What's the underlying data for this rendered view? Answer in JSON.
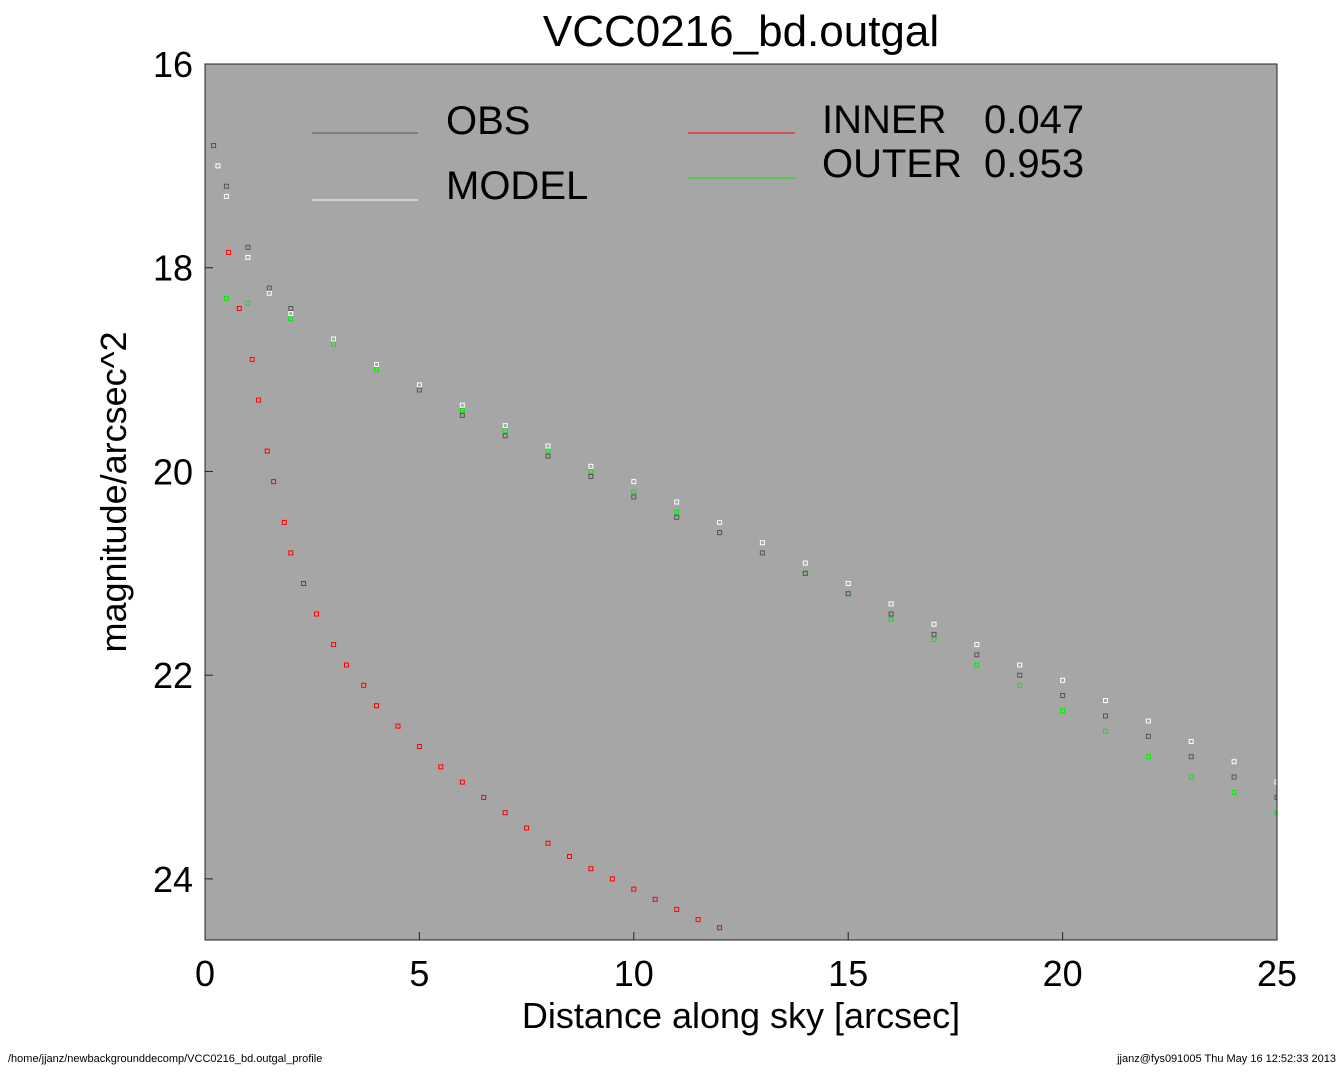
{
  "chart_data": {
    "type": "scatter",
    "title": "VCC0216_bd.outgal",
    "xlabel": "Distance along sky [arcsec]",
    "ylabel": "magnitude/arcsec^2",
    "xlim": [
      0,
      25
    ],
    "ylim": [
      16,
      24.6
    ],
    "y_inverted": true,
    "xticks": [
      0,
      5,
      10,
      15,
      20,
      25
    ],
    "yticks": [
      16,
      18,
      20,
      22,
      24
    ],
    "background_color": "#a6a6a6",
    "grid": false,
    "legend": [
      {
        "name": "OBS",
        "value": "",
        "color": "#555555"
      },
      {
        "name": "MODEL",
        "value": "",
        "color": "#ffffff"
      },
      {
        "name": "INNER",
        "value": "0.047",
        "color": "#ff0000"
      },
      {
        "name": "OUTER",
        "value": "0.953",
        "color": "#00ee00"
      }
    ],
    "series": [
      {
        "name": "INNER",
        "color": "#ff0000",
        "points": [
          [
            0.55,
            17.85
          ],
          [
            0.8,
            18.4
          ],
          [
            1.1,
            18.9
          ],
          [
            1.25,
            19.3
          ],
          [
            1.45,
            19.8
          ],
          [
            1.6,
            20.1
          ],
          [
            1.85,
            20.5
          ],
          [
            2.0,
            20.8
          ],
          [
            2.3,
            21.1
          ],
          [
            2.6,
            21.4
          ],
          [
            3.0,
            21.7
          ],
          [
            3.3,
            21.9
          ],
          [
            3.7,
            22.1
          ],
          [
            4.0,
            22.3
          ],
          [
            4.5,
            22.5
          ],
          [
            5.0,
            22.7
          ],
          [
            5.5,
            22.9
          ],
          [
            6.0,
            23.05
          ],
          [
            6.5,
            23.2
          ],
          [
            7.0,
            23.35
          ],
          [
            7.5,
            23.5
          ],
          [
            8.0,
            23.65
          ],
          [
            8.5,
            23.78
          ],
          [
            9.0,
            23.9
          ],
          [
            9.5,
            24.0
          ],
          [
            10.0,
            24.1
          ],
          [
            10.5,
            24.2
          ],
          [
            11.0,
            24.3
          ],
          [
            11.5,
            24.4
          ],
          [
            12.0,
            24.48
          ]
        ]
      },
      {
        "name": "OUTER",
        "color": "#00ee00",
        "points": [
          [
            0.5,
            18.3
          ],
          [
            1,
            18.35
          ],
          [
            2,
            18.5
          ],
          [
            3,
            18.75
          ],
          [
            4,
            19.0
          ],
          [
            5,
            19.2
          ],
          [
            6,
            19.4
          ],
          [
            7,
            19.6
          ],
          [
            8,
            19.8
          ],
          [
            9,
            20.0
          ],
          [
            10,
            20.2
          ],
          [
            11,
            20.4
          ],
          [
            12,
            20.6
          ],
          [
            13,
            20.8
          ],
          [
            14,
            21.0
          ],
          [
            15,
            21.2
          ],
          [
            16,
            21.45
          ],
          [
            17,
            21.65
          ],
          [
            18,
            21.9
          ],
          [
            19,
            22.1
          ],
          [
            20,
            22.35
          ],
          [
            21,
            22.55
          ],
          [
            22,
            22.8
          ],
          [
            23,
            23.0
          ],
          [
            24,
            23.15
          ],
          [
            25,
            23.35
          ]
        ]
      },
      {
        "name": "OBS",
        "color": "#555555",
        "points": [
          [
            0.2,
            16.8
          ],
          [
            0.5,
            17.2
          ],
          [
            1,
            17.8
          ],
          [
            1.5,
            18.2
          ],
          [
            2,
            18.4
          ],
          [
            3,
            18.7
          ],
          [
            4,
            18.95
          ],
          [
            5,
            19.2
          ],
          [
            6,
            19.45
          ],
          [
            7,
            19.65
          ],
          [
            8,
            19.85
          ],
          [
            9,
            20.05
          ],
          [
            10,
            20.25
          ],
          [
            11,
            20.45
          ],
          [
            12,
            20.6
          ],
          [
            13,
            20.8
          ],
          [
            14,
            21.0
          ],
          [
            15,
            21.2
          ],
          [
            16,
            21.4
          ],
          [
            17,
            21.6
          ],
          [
            18,
            21.8
          ],
          [
            19,
            22.0
          ],
          [
            20,
            22.2
          ],
          [
            21,
            22.4
          ],
          [
            22,
            22.6
          ],
          [
            23,
            22.8
          ],
          [
            24,
            23.0
          ],
          [
            25,
            23.2
          ]
        ]
      },
      {
        "name": "MODEL",
        "color": "#ffffff",
        "points": [
          [
            0.3,
            17.0
          ],
          [
            0.5,
            17.3
          ],
          [
            1,
            17.9
          ],
          [
            1.5,
            18.25
          ],
          [
            2,
            18.45
          ],
          [
            3,
            18.7
          ],
          [
            4,
            18.95
          ],
          [
            5,
            19.15
          ],
          [
            6,
            19.35
          ],
          [
            7,
            19.55
          ],
          [
            8,
            19.75
          ],
          [
            9,
            19.95
          ],
          [
            10,
            20.1
          ],
          [
            11,
            20.3
          ],
          [
            12,
            20.5
          ],
          [
            13,
            20.7
          ],
          [
            14,
            20.9
          ],
          [
            15,
            21.1
          ],
          [
            16,
            21.3
          ],
          [
            17,
            21.5
          ],
          [
            18,
            21.7
          ],
          [
            19,
            21.9
          ],
          [
            20,
            22.05
          ],
          [
            21,
            22.25
          ],
          [
            22,
            22.45
          ],
          [
            23,
            22.65
          ],
          [
            24,
            22.85
          ],
          [
            25,
            23.05
          ]
        ]
      }
    ]
  },
  "footer": {
    "left": "/home/jjanz/newbackgrounddecomp/VCC0216_bd.outgal_profile",
    "right": "jjanz@fys091005  Thu May 16 12:52:33 2013"
  }
}
